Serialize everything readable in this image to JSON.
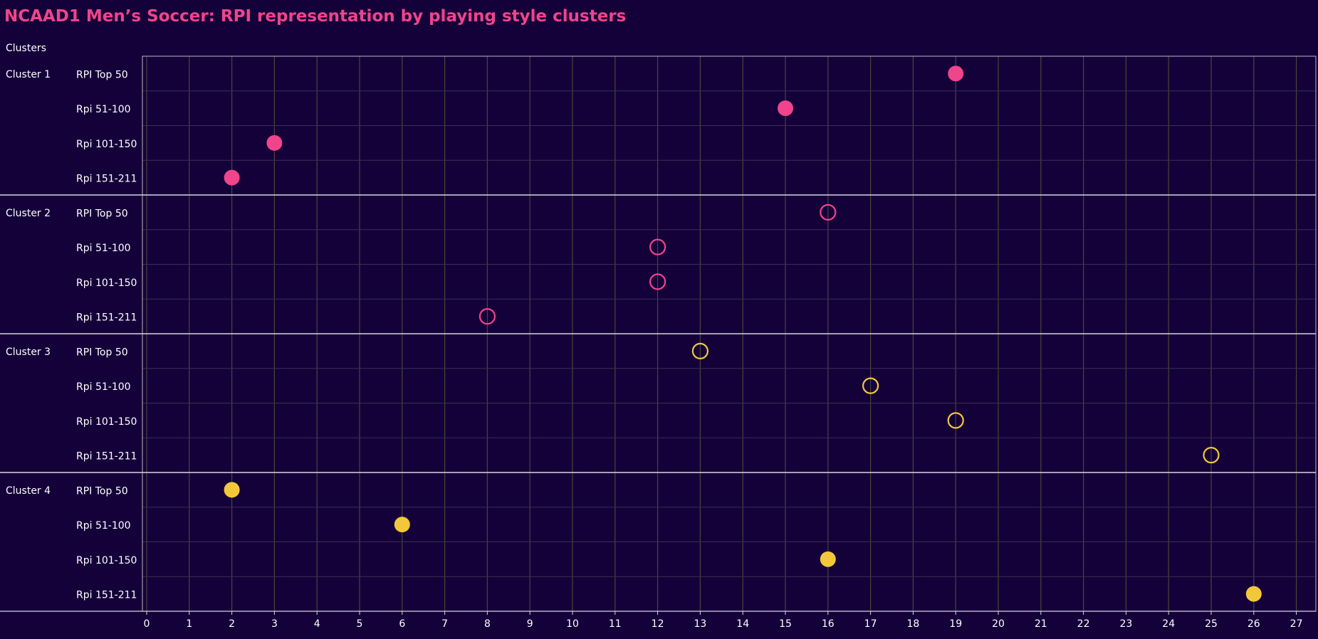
{
  "chart_data": {
    "type": "scatter",
    "title": "NCAAD1 Men’s Soccer: RPI representation by playing style clusters",
    "row_header": "Clusters",
    "x_ticks": [
      "0",
      "1",
      "2",
      "3",
      "4",
      "5",
      "6",
      "7",
      "8",
      "9",
      "10",
      "11",
      "12",
      "13",
      "14",
      "15",
      "16",
      "17",
      "18",
      "19",
      "20",
      "21",
      "22",
      "23",
      "24",
      "25",
      "26",
      "27"
    ],
    "xlim": [
      0,
      27.5
    ],
    "grid": true,
    "colors": {
      "pink": "#f0448b",
      "yellow": "#f2c83a"
    },
    "groups": [
      {
        "label": "Cluster 1",
        "color": "#f0448b",
        "filled": true,
        "rows": [
          {
            "label": "RPI Top 50",
            "value": 19
          },
          {
            "label": "Rpi 51-100",
            "value": 15
          },
          {
            "label": "Rpi 101-150",
            "value": 3
          },
          {
            "label": "Rpi 151-211",
            "value": 2
          }
        ]
      },
      {
        "label": "Cluster 2",
        "color": "#f0448b",
        "filled": false,
        "rows": [
          {
            "label": "RPI Top 50",
            "value": 16
          },
          {
            "label": "Rpi 51-100",
            "value": 12
          },
          {
            "label": "Rpi 101-150",
            "value": 12
          },
          {
            "label": "Rpi 151-211",
            "value": 8
          }
        ]
      },
      {
        "label": "Cluster 3",
        "color": "#f2c83a",
        "filled": false,
        "rows": [
          {
            "label": "RPI Top 50",
            "value": 13
          },
          {
            "label": "Rpi 51-100",
            "value": 17
          },
          {
            "label": "Rpi 101-150",
            "value": 19
          },
          {
            "label": "Rpi 151-211",
            "value": 25
          }
        ]
      },
      {
        "label": "Cluster 4",
        "color": "#f2c83a",
        "filled": true,
        "rows": [
          {
            "label": "RPI Top 50",
            "value": 2
          },
          {
            "label": "Rpi 51-100",
            "value": 6
          },
          {
            "label": "Rpi 101-150",
            "value": 16
          },
          {
            "label": "Rpi 151-211",
            "value": 26
          }
        ]
      }
    ]
  }
}
